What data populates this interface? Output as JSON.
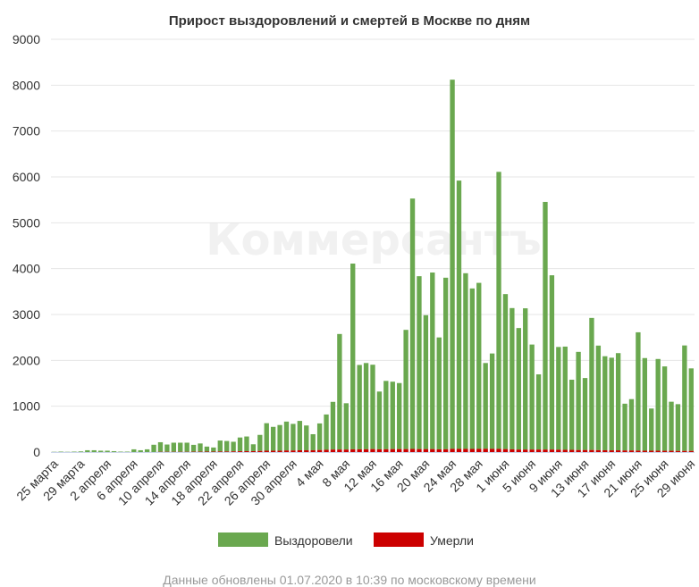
{
  "chart_data": {
    "type": "bar",
    "stacked": true,
    "title": "Прирост выздоровлений и смертей в Москве по дням",
    "xlabel": "",
    "ylabel": "",
    "ylim": [
      0,
      9000
    ],
    "yticks": [
      0,
      1000,
      2000,
      3000,
      4000,
      5000,
      6000,
      7000,
      8000,
      9000
    ],
    "grid": true,
    "legend_position": "bottom",
    "x_tick_labels": [
      "25 марта",
      "29 марта",
      "2 апреля",
      "6 апреля",
      "10 апреля",
      "14 апреля",
      "18 апреля",
      "22 апреля",
      "26 апреля",
      "30 апреля",
      "4 мая",
      "8 мая",
      "12 мая",
      "16 мая",
      "20 мая",
      "24 мая",
      "28 мая",
      "1 июня",
      "5 июня",
      "9 июня",
      "13 июня",
      "17 июня",
      "21 июня",
      "25 июня",
      "29 июня"
    ],
    "x_tick_every": 4,
    "series": [
      {
        "name": "Выздоровели",
        "color": "#6aa84f",
        "values": [
          5,
          10,
          5,
          10,
          15,
          40,
          40,
          30,
          30,
          20,
          10,
          10,
          60,
          40,
          60,
          160,
          210,
          160,
          200,
          200,
          200,
          150,
          180,
          110,
          90,
          240,
          230,
          210,
          300,
          320,
          150,
          350,
          600,
          520,
          560,
          630,
          580,
          640,
          540,
          350,
          580,
          770,
          1040,
          2520,
          1010,
          4050,
          1840,
          1880,
          1840,
          1260,
          1490,
          1470,
          1440,
          2600,
          5460,
          3770,
          2920,
          3850,
          2440,
          3740,
          8050,
          5850,
          3830,
          3500,
          3620,
          1870,
          2080,
          6040,
          3380,
          3080,
          2650,
          3080,
          2290,
          1640,
          5400,
          3800,
          2240,
          2250,
          1530,
          2140,
          1570,
          2880,
          2280,
          2050,
          2020,
          2120,
          1020,
          1120,
          2580,
          2020,
          920,
          2000,
          1840,
          1070,
          1020,
          2300,
          1800
        ]
      },
      {
        "name": "Умерли",
        "color": "#cc0000",
        "values": [
          0,
          0,
          0,
          0,
          0,
          0,
          0,
          0,
          0,
          0,
          0,
          0,
          0,
          0,
          0,
          0,
          5,
          5,
          5,
          5,
          5,
          8,
          8,
          10,
          10,
          12,
          12,
          15,
          18,
          20,
          20,
          25,
          30,
          30,
          30,
          35,
          35,
          40,
          40,
          40,
          45,
          50,
          55,
          55,
          55,
          60,
          60,
          62,
          65,
          60,
          62,
          65,
          65,
          65,
          68,
          65,
          65,
          65,
          60,
          62,
          70,
          70,
          70,
          68,
          70,
          72,
          70,
          70,
          65,
          60,
          55,
          55,
          55,
          55,
          55,
          55,
          52,
          50,
          48,
          45,
          45,
          45,
          42,
          40,
          38,
          38,
          35,
          35,
          32,
          30,
          30,
          30,
          28,
          28,
          25,
          25,
          25
        ]
      }
    ]
  },
  "watermark": "Коммерсантъ",
  "footer": "Данные обновлены 01.07.2020 в 10:39 по московскому времени"
}
